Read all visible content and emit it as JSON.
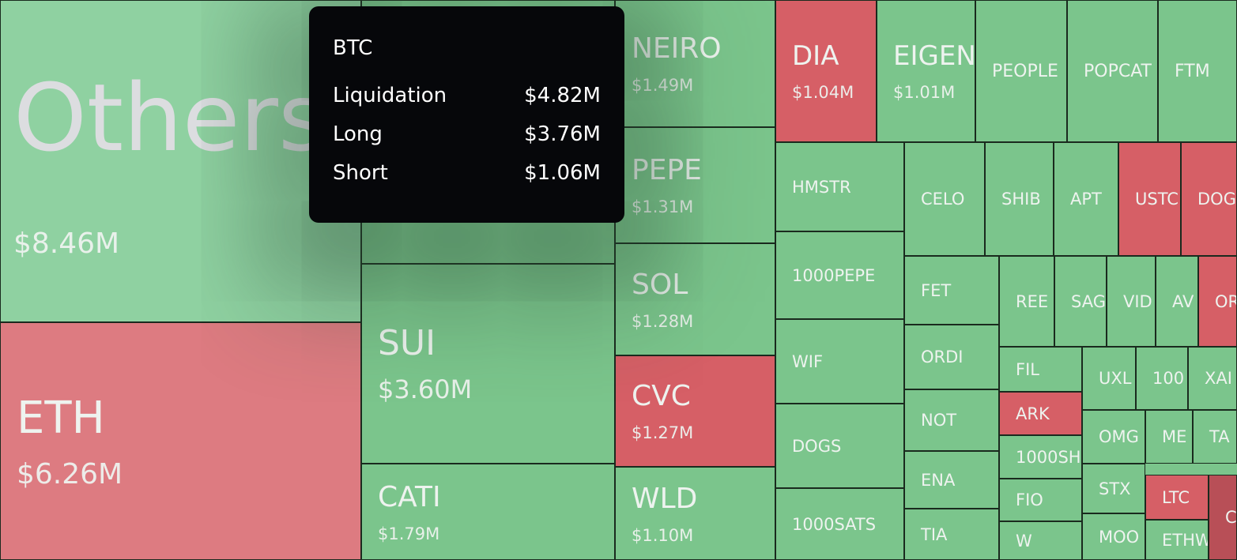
{
  "tiles": [
    {
      "label": "Others",
      "value": "$8.46M",
      "color": "#8fd1a1"
    },
    {
      "label": "ETH",
      "value": "$6.26M",
      "color": "#dd7b81"
    },
    {
      "color": "#7bc58c"
    },
    {
      "label": "SUI",
      "value": "$3.60M",
      "color": "#7bc58c"
    },
    {
      "label": "CATI",
      "value": "$1.79M",
      "color": "#7bc58c"
    },
    {
      "label": "NEIRO",
      "value": "$1.49M",
      "color": "#7bc58c"
    },
    {
      "label": "PEPE",
      "value": "$1.31M",
      "color": "#7bc58c"
    },
    {
      "label": "SOL",
      "value": "$1.28M",
      "color": "#7bc58c"
    },
    {
      "label": "CVC",
      "value": "$1.27M",
      "color": "#d65f66"
    },
    {
      "label": "WLD",
      "value": "$1.10M",
      "color": "#7bc58c"
    },
    {
      "label": "DIA",
      "value": "$1.04M",
      "color": "#d65f66"
    },
    {
      "label": "EIGEN",
      "value": "$1.01M",
      "color": "#7bc58c"
    },
    {
      "label": "PEOPLE",
      "color": "#7bc58c"
    },
    {
      "label": "POPCAT",
      "color": "#7bc58c"
    },
    {
      "label": "FTM",
      "color": "#7bc58c"
    },
    {
      "label": "HMSTR",
      "color": "#7bc58c"
    },
    {
      "label": "1000PEPE",
      "color": "#7bc58c"
    },
    {
      "label": "WIF",
      "color": "#7bc58c"
    },
    {
      "label": "DOGS",
      "color": "#7bc58c"
    },
    {
      "label": "1000SATS",
      "color": "#7bc58c"
    },
    {
      "label": "CELO",
      "color": "#7bc58c"
    },
    {
      "label": "SHIB",
      "color": "#7bc58c"
    },
    {
      "label": "APT",
      "color": "#7bc58c"
    },
    {
      "label": "USTC",
      "color": "#d65f66"
    },
    {
      "label": "DOG",
      "color": "#d65f66"
    },
    {
      "label": "FET",
      "color": "#7bc58c"
    },
    {
      "label": "ORDI",
      "color": "#7bc58c"
    },
    {
      "label": "NOT",
      "color": "#7bc58c"
    },
    {
      "label": "ENA",
      "color": "#7bc58c"
    },
    {
      "label": "TIA",
      "color": "#7bc58c"
    },
    {
      "label": "REE",
      "color": "#7bc58c"
    },
    {
      "label": "SAG",
      "color": "#7bc58c"
    },
    {
      "label": "VID",
      "color": "#7bc58c"
    },
    {
      "label": "AV",
      "color": "#7bc58c"
    },
    {
      "label": "OR",
      "color": "#d65f66"
    },
    {
      "label": "FIL",
      "color": "#7bc58c"
    },
    {
      "label": "ARK",
      "color": "#d65f66"
    },
    {
      "label": "1000SH",
      "color": "#7bc58c"
    },
    {
      "label": "FIO",
      "color": "#7bc58c"
    },
    {
      "label": "W",
      "color": "#7bc58c"
    },
    {
      "label": "UXL",
      "color": "#7bc58c"
    },
    {
      "label": "100",
      "color": "#7bc58c"
    },
    {
      "label": "XAI",
      "color": "#7bc58c"
    },
    {
      "label": "OMG",
      "color": "#7bc58c"
    },
    {
      "label": "ME",
      "color": "#7bc58c"
    },
    {
      "label": "TA",
      "color": "#7bc58c"
    },
    {
      "label": "STX",
      "color": "#7bc58c"
    },
    {
      "label": "LTC",
      "color": "#d65f66"
    },
    {
      "label": "MOO",
      "color": "#7bc58c"
    },
    {
      "label": "ETHW",
      "color": "#7bc58c"
    },
    {
      "label": "C",
      "color": "#b84f57"
    }
  ],
  "tooltip": {
    "title": "BTC",
    "rows": [
      [
        "Liquidation",
        "$4.82M"
      ],
      [
        "Long",
        "$3.76M"
      ],
      [
        "Short",
        "$1.06M"
      ]
    ]
  }
}
